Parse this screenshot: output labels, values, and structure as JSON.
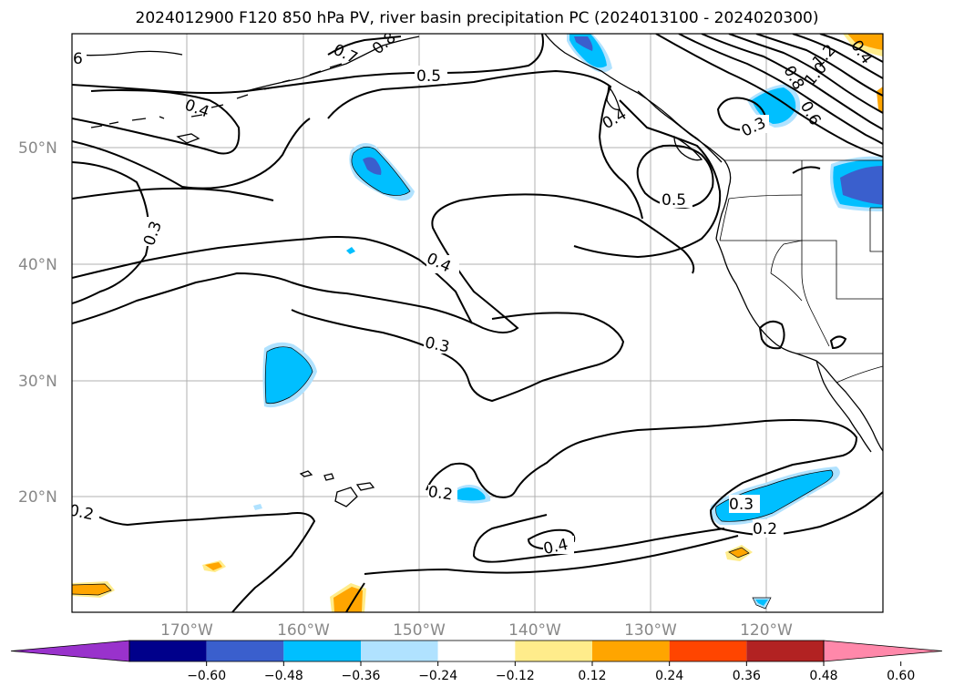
{
  "title": "2024012900 F120 850 hPa PV, river basin precipitation PC (2024013100 - 2024020300)",
  "lat_labels": [
    "50°N",
    "40°N",
    "30°N",
    "20°N"
  ],
  "lon_labels": [
    "170°W",
    "160°W",
    "150°W",
    "140°W",
    "130°W",
    "120°W"
  ],
  "contour_labels": [
    "0.5",
    "0.5",
    "0.4",
    "0.3",
    "0.3",
    "0.2",
    "0.2",
    "0.2",
    "0.3",
    "0.4",
    "0.3",
    "6",
    "1.2",
    "1.0",
    "0.8",
    "0.6",
    "0.7",
    "0.8",
    "0.4",
    "0.4",
    "0.4"
  ],
  "colorbar": {
    "ticks": [
      "−0.60",
      "−0.48",
      "−0.36",
      "−0.24",
      "−0.12",
      "0.12",
      "0.24",
      "0.36",
      "0.48",
      "0.60"
    ],
    "colors": [
      "#9932cc",
      "#00008b",
      "#3a5fcd",
      "#00bfff",
      "#b0e2ff",
      "#ffffff",
      "#ffec8b",
      "#ffa500",
      "#ff4500",
      "#b22222",
      "#ff88aa"
    ]
  }
}
